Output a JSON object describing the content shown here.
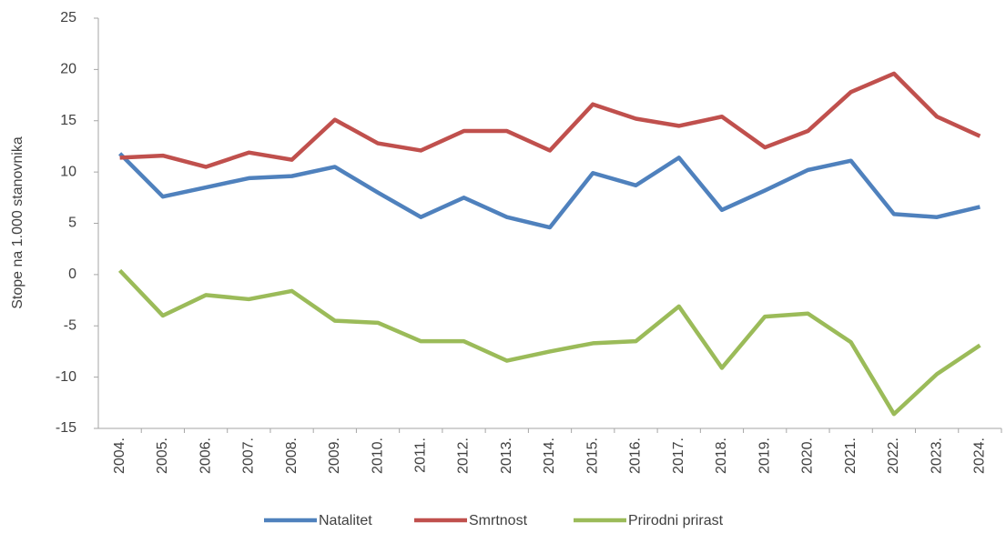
{
  "chart_data": {
    "type": "line",
    "y_label": "Stope na 1.000 stanovnika",
    "categories": [
      "2004.",
      "2005.",
      "2006.",
      "2007.",
      "2008.",
      "2009.",
      "2010.",
      "2011.",
      "2012.",
      "2013.",
      "2014.",
      "2015.",
      "2016.",
      "2017.",
      "2018.",
      "2019.",
      "2020.",
      "2021.",
      "2022.",
      "2023.",
      "2024."
    ],
    "series": [
      {
        "name": "Natalitet",
        "color": "#4f81bd",
        "values": [
          11.8,
          7.6,
          8.5,
          9.4,
          9.6,
          10.5,
          8.0,
          5.6,
          7.5,
          5.6,
          4.6,
          9.9,
          8.7,
          11.4,
          6.3,
          8.2,
          10.2,
          11.1,
          5.9,
          5.6,
          6.6
        ]
      },
      {
        "name": "Smrtnost",
        "color": "#c0504d",
        "values": [
          11.4,
          11.6,
          10.5,
          11.9,
          11.2,
          15.1,
          12.8,
          12.1,
          14.0,
          14.0,
          12.1,
          16.6,
          15.2,
          14.5,
          15.4,
          12.4,
          14.0,
          17.8,
          19.6,
          15.4,
          13.5
        ]
      },
      {
        "name": "Prirodni prirast",
        "color": "#9bbb59",
        "values": [
          0.4,
          -4.0,
          -2.0,
          -2.4,
          -1.6,
          -4.5,
          -4.7,
          -6.5,
          -6.5,
          -8.4,
          -7.5,
          -6.7,
          -6.5,
          -3.1,
          -9.1,
          -4.1,
          -3.8,
          -6.6,
          -13.6,
          -9.7,
          -6.9
        ]
      }
    ],
    "ylim": [
      -15,
      25
    ],
    "yticks": [
      -15,
      -10,
      -5,
      0,
      5,
      10,
      15,
      20,
      25
    ],
    "grid": false,
    "legend": "bottom"
  }
}
